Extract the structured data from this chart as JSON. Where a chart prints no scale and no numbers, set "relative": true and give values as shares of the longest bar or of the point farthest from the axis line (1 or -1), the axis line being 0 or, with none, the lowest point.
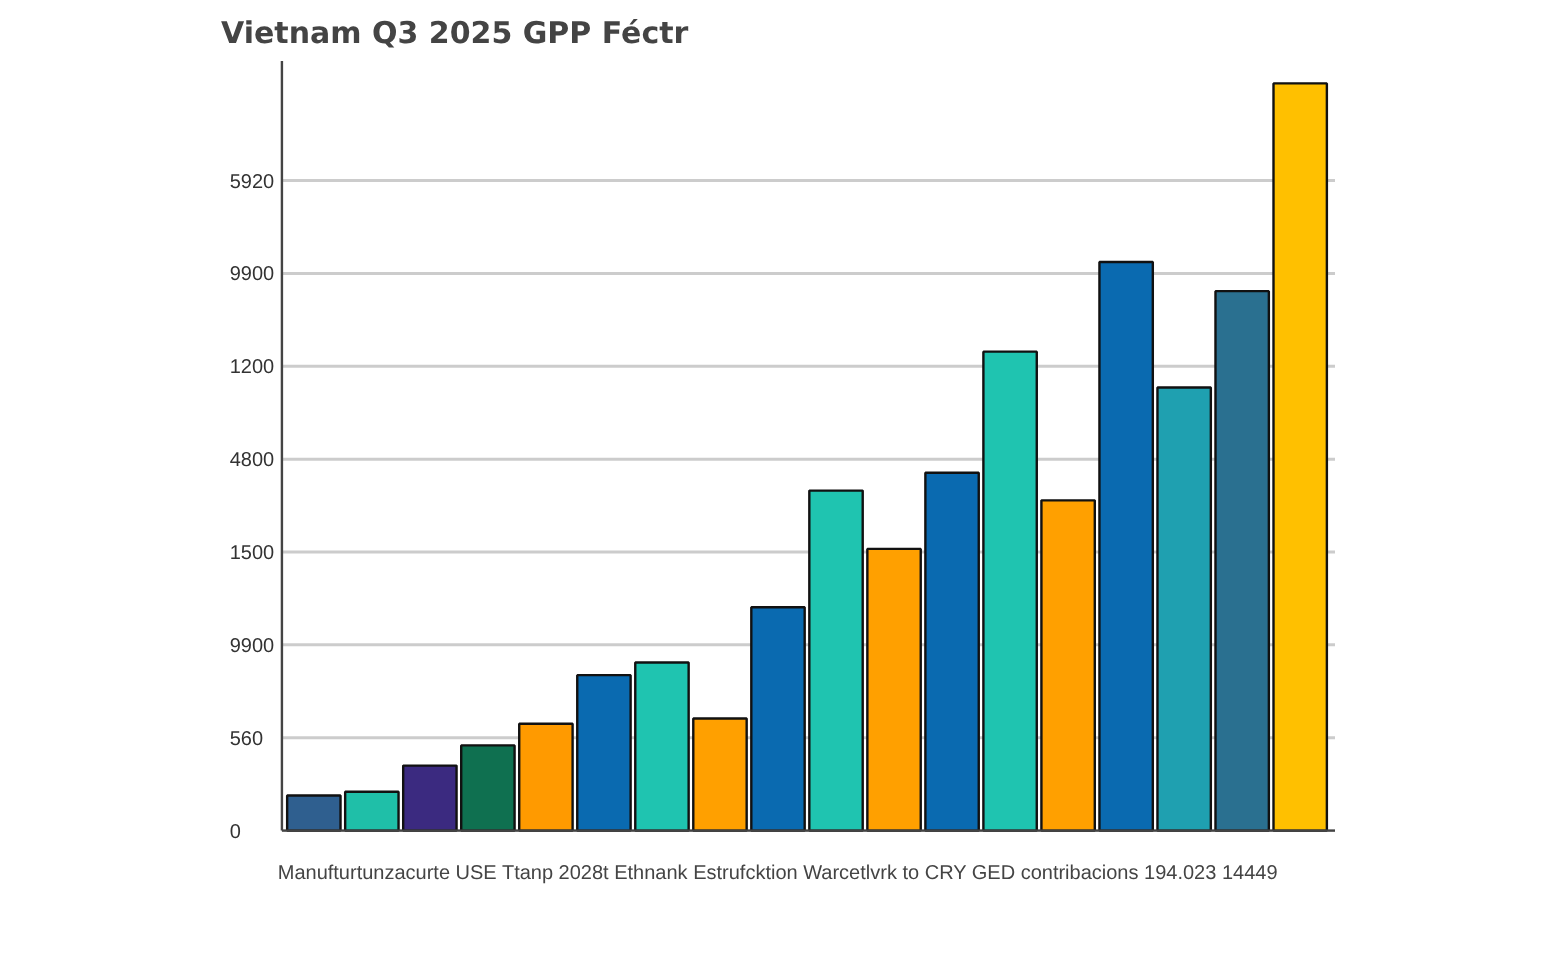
{
  "chart_data": {
    "type": "bar",
    "title": "Vietnam Q3 2025 GPP Féctr",
    "xlabel": "Manufturtunzacurte USE Ttanp 2028t Ethnank Estrufcktion Warcetlvrk to CRY GED contribacions 194.023 14449",
    "categories": [
      null,
      null,
      null,
      null,
      null,
      null,
      null,
      null,
      null,
      null,
      null,
      null,
      null,
      null,
      null,
      null,
      null,
      null
    ],
    "values": [
      0.047,
      0.052,
      0.087,
      0.114,
      0.143,
      0.208,
      0.225,
      0.15,
      0.299,
      0.455,
      0.377,
      0.479,
      0.641,
      0.442,
      0.761,
      0.593,
      0.722,
      1
    ],
    "colors": [
      "#2f5f8f",
      "#1fbfa8",
      "#3b2a80",
      "#0f7050",
      "#ff9a00",
      "#0a6ab0",
      "#1fc4b0",
      "#ffa000",
      "#0a6ab0",
      "#1fc4b0",
      "#ffa000",
      "#0a6ab0",
      "#1fc4b0",
      "#ffa000",
      "#0a6ab0",
      "#1fa0b0",
      "#2a7090",
      "#ffc000"
    ],
    "relative": true,
    "annotations": [
      "5920",
      "9900",
      "1200",
      "4800",
      "1500",
      "9900",
      "560",
      "0"
    ],
    "grid": "y"
  }
}
